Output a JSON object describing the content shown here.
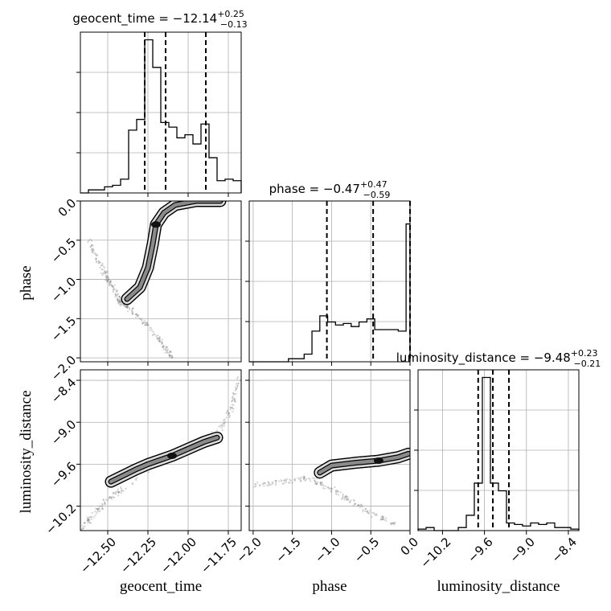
{
  "chart_data": {
    "type": "corner",
    "parameters": [
      "geocent_time",
      "phase",
      "luminosity_distance"
    ],
    "titles": [
      {
        "name": "geocent_time",
        "median": "−12.14",
        "plus": "+0.25",
        "minus": "−0.13"
      },
      {
        "name": "phase",
        "median": "−0.47",
        "plus": "+0.47",
        "minus": "−0.59"
      },
      {
        "name": "luminosity_distance",
        "median": "−9.48",
        "plus": "+0.23",
        "minus": "−0.21"
      }
    ],
    "ranges": {
      "geocent_time": [
        -12.67,
        -11.67
      ],
      "phase": [
        -2.05,
        0.0
      ],
      "luminosity_distance": [
        -10.55,
        -8.25
      ]
    },
    "ticks": {
      "geocent_time": [
        "−12.50",
        "−12.25",
        "−12.00",
        "−11.75"
      ],
      "geocent_time_values": [
        -12.5,
        -12.25,
        -12.0,
        -11.75
      ],
      "phase": [
        "−2.0",
        "−1.5",
        "−1.0",
        "−0.5",
        "0.0"
      ],
      "phase_values": [
        -2.0,
        -1.5,
        -1.0,
        -0.5,
        0.0
      ],
      "luminosity_distance": [
        "−10.2",
        "−9.6",
        "−9.0",
        "−8.4"
      ],
      "luminosity_distance_values": [
        -10.2,
        -9.6,
        -9.0,
        -8.4
      ]
    },
    "quantiles": {
      "geocent_time": [
        -12.27,
        -12.14,
        -11.89
      ],
      "phase": [
        -1.06,
        -0.47,
        0.0
      ],
      "luminosity_distance": [
        -9.69,
        -9.48,
        -9.25
      ]
    },
    "histograms": {
      "geocent_time": {
        "edges_start": -12.67,
        "bin_width": 0.05,
        "counts": [
          0.0,
          0.02,
          0.02,
          0.04,
          0.05,
          0.09,
          0.41,
          0.48,
          1.0,
          0.82,
          0.46,
          0.43,
          0.36,
          0.38,
          0.32,
          0.45,
          0.23,
          0.08,
          0.09,
          0.08,
          0.02
        ]
      },
      "phase": {
        "edges_start": -2.05,
        "bin_width": 0.1,
        "counts": [
          0.0,
          0.0,
          0.0,
          0.0,
          0.0,
          0.02,
          0.02,
          0.05,
          0.2,
          0.3,
          0.26,
          0.24,
          0.25,
          0.23,
          0.26,
          0.28,
          0.21,
          0.21,
          0.21,
          0.2,
          0.9
        ]
      },
      "luminosity_distance": {
        "edges_start": -10.55,
        "bin_width": 0.115,
        "counts": [
          0.01,
          0.02,
          0.0,
          0.0,
          0.0,
          0.02,
          0.1,
          0.31,
          1.0,
          0.31,
          0.26,
          0.05,
          0.04,
          0.03,
          0.05,
          0.04,
          0.05,
          0.02,
          0.02,
          0.01
        ]
      }
    },
    "scatter_2d": {
      "phase_vs_geocent_time": {
        "contour_ridge": [
          [
            -12.38,
            -1.25
          ],
          [
            -12.3,
            -1.1
          ],
          [
            -12.25,
            -0.85
          ],
          [
            -12.22,
            -0.55
          ],
          [
            -12.2,
            -0.3
          ],
          [
            -12.15,
            -0.15
          ],
          [
            -12.08,
            -0.05
          ],
          [
            -11.95,
            0.0
          ],
          [
            -11.8,
            0.0
          ]
        ],
        "outskirt_trail": [
          [
            -12.62,
            -0.5
          ],
          [
            -12.55,
            -0.8
          ],
          [
            -12.5,
            -1.0
          ],
          [
            -12.45,
            -1.15
          ],
          [
            -12.42,
            -1.3
          ],
          [
            -12.35,
            -1.4
          ],
          [
            -12.25,
            -1.6
          ],
          [
            -12.15,
            -1.85
          ],
          [
            -12.1,
            -2.0
          ]
        ]
      },
      "luminosity_distance_vs_geocent_time": {
        "contour_ridge": [
          [
            -12.48,
            -9.85
          ],
          [
            -12.33,
            -9.68
          ],
          [
            -12.25,
            -9.6
          ],
          [
            -12.1,
            -9.48
          ],
          [
            -12.0,
            -9.38
          ],
          [
            -11.9,
            -9.28
          ],
          [
            -11.82,
            -9.22
          ]
        ],
        "outskirt_trail": [
          [
            -12.67,
            -10.55
          ],
          [
            -12.6,
            -10.35
          ],
          [
            -12.5,
            -10.1
          ],
          [
            -12.4,
            -9.95
          ],
          [
            -11.8,
            -9.1
          ],
          [
            -11.72,
            -8.75
          ],
          [
            -11.68,
            -8.3
          ]
        ]
      },
      "luminosity_distance_vs_phase": {
        "contour_ridge": [
          [
            -1.15,
            -9.72
          ],
          [
            -1.0,
            -9.62
          ],
          [
            -0.7,
            -9.58
          ],
          [
            -0.4,
            -9.55
          ],
          [
            -0.15,
            -9.5
          ],
          [
            -0.02,
            -9.45
          ]
        ],
        "outskirt_trail": [
          [
            -2.0,
            -9.9
          ],
          [
            -1.6,
            -9.85
          ],
          [
            -1.3,
            -9.8
          ],
          [
            -1.0,
            -9.95
          ],
          [
            -0.8,
            -10.1
          ],
          [
            -0.5,
            -10.3
          ],
          [
            -0.2,
            -10.45
          ]
        ]
      }
    }
  }
}
